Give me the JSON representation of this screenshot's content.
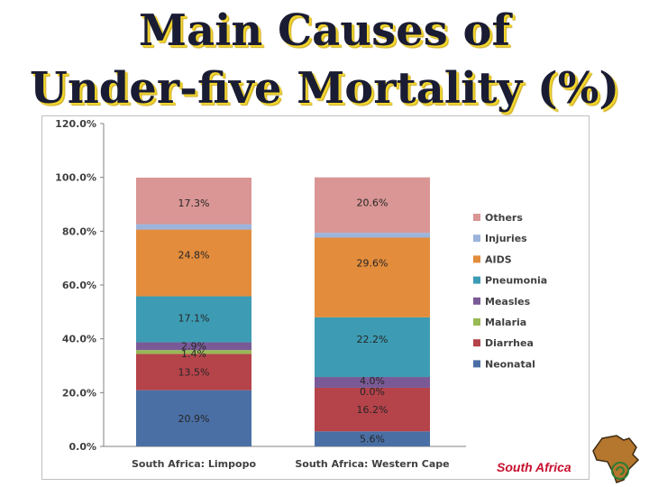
{
  "title": {
    "line1": "Main Causes of",
    "line2": "Under-five Mortality (%)"
  },
  "brand_label": "South Africa",
  "icons": {
    "map": "africa-map-icon"
  },
  "chart_data": {
    "type": "bar",
    "stacked": true,
    "title": "Main Causes of Under-five Mortality (%)",
    "categories": [
      "South Africa: Limpopo",
      "South Africa: Western Cape"
    ],
    "ylim": [
      0,
      120
    ],
    "yticks": [
      0,
      20,
      40,
      60,
      80,
      100,
      120
    ],
    "ytick_labels": [
      "0.0%",
      "20.0%",
      "40.0%",
      "60.0%",
      "80.0%",
      "100.0%",
      "120.0%"
    ],
    "grid": false,
    "legend_position": "right",
    "series": [
      {
        "name": "Neonatal",
        "color": "#4a6fa5",
        "values": [
          20.9,
          5.6
        ],
        "labels": [
          "20.9%",
          "5.6%"
        ]
      },
      {
        "name": "Diarrhea",
        "color": "#b5434a",
        "values": [
          13.5,
          16.2
        ],
        "labels": [
          "13.5%",
          "16.2%"
        ]
      },
      {
        "name": "Malaria",
        "color": "#98b954",
        "values": [
          1.4,
          0.0
        ],
        "labels": [
          "1.4%",
          "0.0%"
        ]
      },
      {
        "name": "Measles",
        "color": "#7a5a96",
        "values": [
          2.9,
          4.0
        ],
        "labels": [
          "2.9%",
          "4.0%"
        ]
      },
      {
        "name": "Pneumonia",
        "color": "#3d9cb4",
        "values": [
          17.1,
          22.2
        ],
        "labels": [
          "17.1%",
          "22.2%"
        ]
      },
      {
        "name": "AIDS",
        "color": "#e38c3c",
        "values": [
          24.8,
          29.6
        ],
        "labels": [
          "24.8%",
          "29.6%"
        ]
      },
      {
        "name": "Injuries",
        "color": "#9cb4dc",
        "values": [
          2.0,
          1.8
        ],
        "labels": [
          "",
          ""
        ]
      },
      {
        "name": "Others",
        "color": "#d99694",
        "values": [
          17.3,
          20.6
        ],
        "labels": [
          "17.3%",
          "20.6%"
        ]
      }
    ]
  }
}
